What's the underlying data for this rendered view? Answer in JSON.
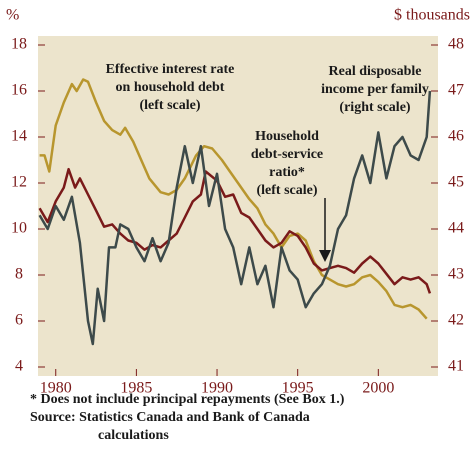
{
  "chart_data": {
    "type": "line",
    "y_label": "%",
    "y2_label": "$ thousands",
    "annotations": [
      {
        "lines": [
          "Effective interest rate",
          "on household debt",
          "(left scale)"
        ]
      },
      {
        "lines": [
          "Real disposable",
          "income per family",
          "(right scale)"
        ]
      },
      {
        "lines": [
          "Household",
          "debt-service",
          "ratio*",
          "(left scale)"
        ]
      }
    ],
    "note": "* Does not include principal repayments (See Box 1.)",
    "source": [
      "Source: Statistics Canada and Bank of Canada",
      "calculations"
    ],
    "xlim": [
      1978.9,
      2003.7
    ],
    "xticks": [
      1980,
      1985,
      1990,
      1995,
      2000
    ],
    "ylim": [
      4,
      18
    ],
    "yticks": [
      4,
      6,
      8,
      10,
      12,
      14,
      16,
      18
    ],
    "y2lim": [
      41,
      48
    ],
    "y2ticks": [
      41,
      42,
      43,
      44,
      45,
      46,
      47,
      48
    ],
    "grid": false,
    "series": [
      {
        "name": "Effective interest rate on household debt",
        "color": "#b8962e",
        "x": [
          1979,
          1979.3,
          1979.6,
          1980,
          1980.5,
          1981,
          1981.3,
          1981.7,
          1982,
          1982.5,
          1983,
          1983.5,
          1984,
          1984.3,
          1984.8,
          1985.3,
          1985.8,
          1986.5,
          1987,
          1987.5,
          1988,
          1988.7,
          1989.2,
          1989.7,
          1990.3,
          1990.8,
          1991.3,
          1992,
          1992.5,
          1993,
          1993.5,
          1994,
          1994.5,
          1995,
          1995.5,
          1996,
          1996.5,
          1997,
          1997.5,
          1998,
          1998.5,
          1999,
          1999.5,
          2000,
          2000.5,
          2001,
          2001.5,
          2002,
          2002.5,
          2003
        ],
        "values": [
          13.2,
          13.2,
          12.5,
          14.5,
          15.5,
          16.3,
          16.0,
          16.5,
          16.4,
          15.5,
          14.7,
          14.3,
          14.1,
          14.4,
          13.8,
          13.0,
          12.2,
          11.6,
          11.5,
          11.7,
          12.2,
          13.2,
          13.6,
          13.5,
          13.0,
          12.5,
          12.0,
          11.3,
          10.9,
          10.2,
          9.8,
          9.2,
          9.7,
          9.8,
          9.5,
          8.6,
          8.0,
          7.8,
          7.6,
          7.5,
          7.6,
          7.9,
          8.0,
          7.7,
          7.3,
          6.7,
          6.6,
          6.7,
          6.5,
          6.1
        ]
      },
      {
        "name": "Household debt-service ratio",
        "color": "#7a1a1a",
        "x": [
          1979,
          1979.5,
          1980,
          1980.5,
          1980.8,
          1981.2,
          1981.5,
          1982,
          1982.5,
          1983,
          1983.5,
          1984,
          1984.5,
          1985,
          1985.5,
          1986,
          1986.5,
          1987,
          1987.5,
          1988,
          1988.5,
          1989,
          1989.3,
          1990,
          1990.5,
          1991,
          1991.5,
          1992,
          1992.5,
          1993,
          1993.5,
          1994,
          1994.5,
          1995,
          1995.5,
          1996,
          1996.5,
          1997,
          1997.5,
          1998,
          1998.5,
          1999,
          1999.5,
          2000,
          2001,
          2001.5,
          2002,
          2002.5,
          2003,
          2003.2
        ],
        "values": [
          10.9,
          10.3,
          11.2,
          11.8,
          12.6,
          11.8,
          12.2,
          11.5,
          10.8,
          10.1,
          10.2,
          9.8,
          9.5,
          9.4,
          9.1,
          9.3,
          9.2,
          9.5,
          9.8,
          10.5,
          11.2,
          11.5,
          12.5,
          12.1,
          11.4,
          11.5,
          10.7,
          10.5,
          10.0,
          9.5,
          9.2,
          9.4,
          9.9,
          9.7,
          9.2,
          8.5,
          8.2,
          8.3,
          8.4,
          8.3,
          8.1,
          8.5,
          8.8,
          8.5,
          7.6,
          7.9,
          7.8,
          7.9,
          7.6,
          7.2
        ]
      },
      {
        "name": "Real disposable income per family",
        "color": "#3d4a4a",
        "axis": "y2",
        "x": [
          1979,
          1979.5,
          1980,
          1980.5,
          1981,
          1981.5,
          1982,
          1982.3,
          1982.6,
          1983,
          1983.3,
          1983.7,
          1984,
          1984.5,
          1985,
          1985.5,
          1986,
          1986.5,
          1987,
          1987.5,
          1988,
          1988.5,
          1989,
          1989.5,
          1990,
          1990.5,
          1991,
          1991.5,
          1992,
          1992.5,
          1993,
          1993.5,
          1994,
          1994.5,
          1995,
          1995.5,
          1996,
          1996.5,
          1997,
          1997.5,
          1998,
          1998.5,
          1999,
          1999.5,
          2000,
          2000.5,
          2001,
          2001.5,
          2002,
          2002.5,
          2003,
          2003.2
        ],
        "values": [
          44.3,
          44.0,
          44.5,
          44.2,
          44.7,
          43.7,
          42.0,
          41.5,
          42.7,
          42.0,
          43.6,
          43.6,
          44.1,
          44.0,
          43.6,
          43.3,
          43.8,
          43.3,
          43.7,
          44.9,
          45.8,
          45.0,
          45.8,
          44.5,
          45.2,
          44.0,
          43.6,
          42.8,
          43.6,
          42.8,
          43.2,
          42.3,
          43.6,
          43.1,
          42.9,
          42.3,
          42.6,
          42.8,
          43.2,
          44.0,
          44.3,
          45.1,
          45.6,
          45.0,
          46.1,
          45.1,
          45.8,
          46.0,
          45.6,
          45.5,
          46.0,
          47.0
        ]
      }
    ]
  }
}
